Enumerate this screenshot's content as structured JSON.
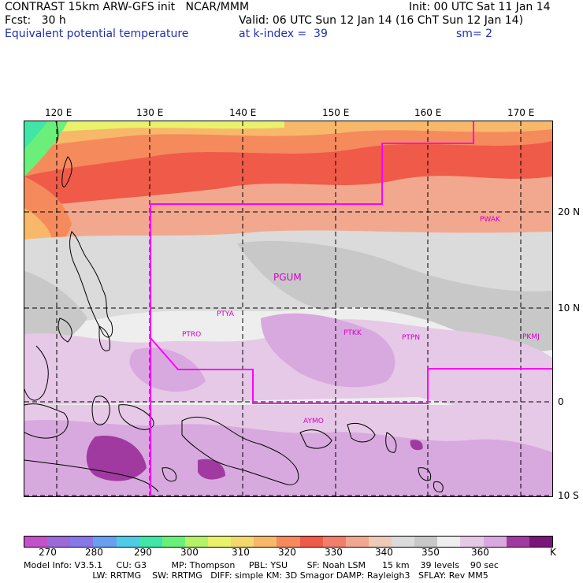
{
  "header": {
    "line1_left": "CONTRAST 15km ARW-GFS init   NCAR/MMM",
    "line1_right": "Init: 00 UTC Sat 11 Jan 14",
    "line2_left": "Fcst:   30 h",
    "line2_right": "Valid: 06 UTC Sun 12 Jan 14 (16 ChT Sun 12 Jan 14)",
    "line3_field": "Equivalent potential temperature",
    "line3_level": "at k-index =  39",
    "line3_smooth": "sm= 2"
  },
  "map": {
    "lon_labels": [
      "120 E",
      "130 E",
      "140 E",
      "150 E",
      "160 E",
      "170 E"
    ],
    "lat_labels": [
      "20 N",
      "10 N",
      "0",
      "10 S"
    ],
    "stations": [
      {
        "id": "PWAK",
        "name": "PWAK"
      },
      {
        "id": "PGUM",
        "name": "PGUM"
      },
      {
        "id": "PTYA",
        "name": "PTYA"
      },
      {
        "id": "PTRO",
        "name": "PTRO"
      },
      {
        "id": "PTKK",
        "name": "PTKK"
      },
      {
        "id": "PTPN",
        "name": "PTPN"
      },
      {
        "id": "PKMJ",
        "name": "PKMJ"
      },
      {
        "id": "AYMO",
        "name": "AYMO"
      }
    ],
    "boundary_color": "#ff00ff"
  },
  "colorbar": {
    "colors": [
      "#c252c8",
      "#9b6ad6",
      "#8877e8",
      "#66a0ef",
      "#4fcbe6",
      "#40e6a8",
      "#6af07a",
      "#b4f268",
      "#e9f26a",
      "#f5d770",
      "#f7b86a",
      "#f58a5c",
      "#f05a48",
      "#ef7f6c",
      "#f2a88f",
      "#efcab9",
      "#dbdbdb",
      "#c8c8c8",
      "#eeeeee",
      "#e6c9e6",
      "#d8a9de",
      "#a03aa0",
      "#7a157a"
    ],
    "labels": [
      "270",
      "280",
      "290",
      "300",
      "310",
      "320",
      "330",
      "340",
      "350",
      "360",
      "K"
    ]
  },
  "model_info": {
    "line1": "Model Info: V3.5.1     CU: G3         MP: Thompson     PBL: YSU       SF: Noah LSM      15 km    39 levels    90 sec",
    "line2": "                         LW: RRTMG    SW: RRTMG   DIFF: simple KM: 3D Smagor DAMP: Rayleigh3   SFLAY: Rev MM5"
  }
}
